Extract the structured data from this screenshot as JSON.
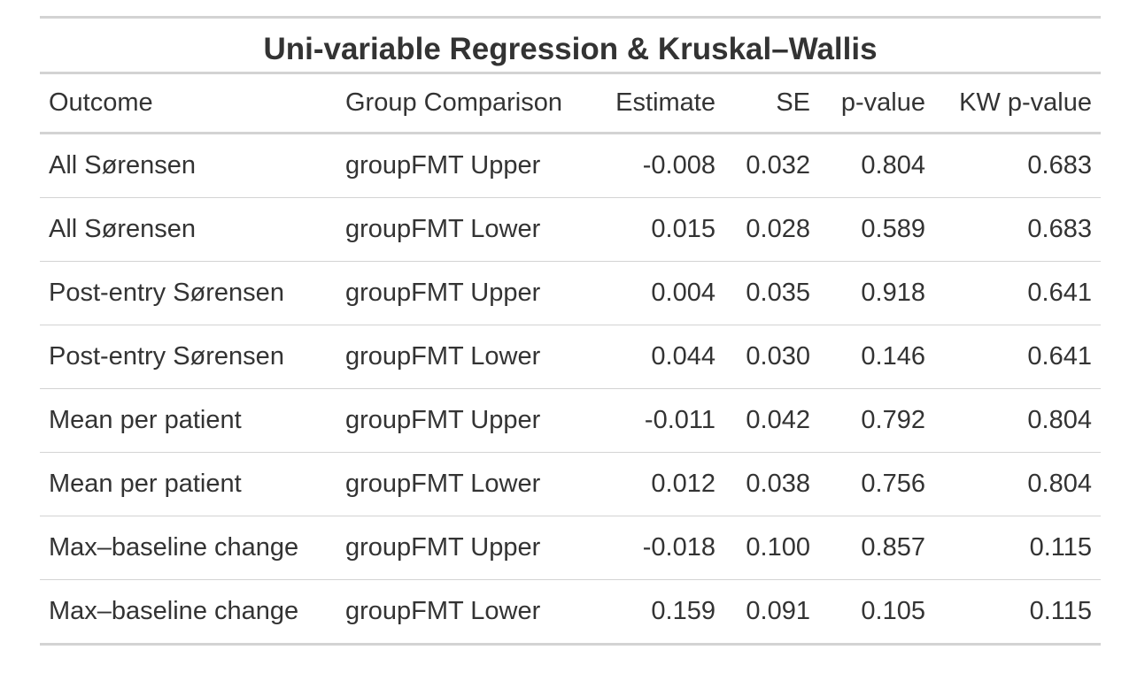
{
  "table": {
    "title": "Uni-variable Regression & Kruskal–Wallis",
    "columns": [
      "Outcome",
      "Group Comparison",
      "Estimate",
      "SE",
      "p-value",
      "KW p-value"
    ],
    "rows": [
      [
        "All Sørensen",
        "groupFMT Upper",
        "-0.008",
        "0.032",
        "0.804",
        "0.683"
      ],
      [
        "All Sørensen",
        "groupFMT Lower",
        "0.015",
        "0.028",
        "0.589",
        "0.683"
      ],
      [
        "Post-entry Sørensen",
        "groupFMT Upper",
        "0.004",
        "0.035",
        "0.918",
        "0.641"
      ],
      [
        "Post-entry Sørensen",
        "groupFMT Lower",
        "0.044",
        "0.030",
        "0.146",
        "0.641"
      ],
      [
        "Mean per patient",
        "groupFMT Upper",
        "-0.011",
        "0.042",
        "0.792",
        "0.804"
      ],
      [
        "Mean per patient",
        "groupFMT Lower",
        "0.012",
        "0.038",
        "0.756",
        "0.804"
      ],
      [
        "Max–baseline change",
        "groupFMT Upper",
        "-0.018",
        "0.100",
        "0.857",
        "0.115"
      ],
      [
        "Max–baseline change",
        "groupFMT Lower",
        "0.159",
        "0.091",
        "0.105",
        "0.115"
      ]
    ]
  }
}
